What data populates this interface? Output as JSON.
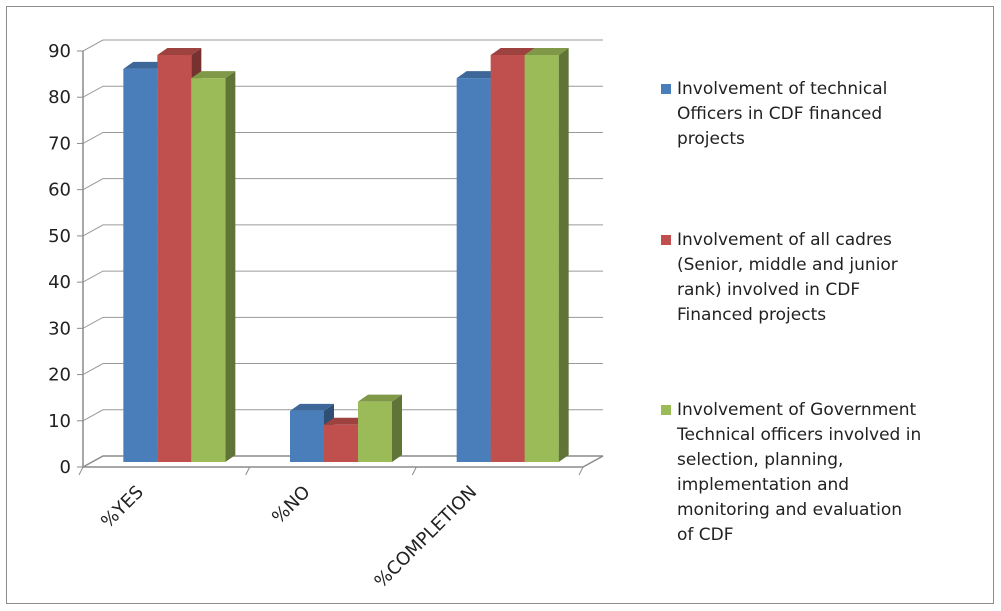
{
  "chart_data": {
    "type": "bar",
    "categories": [
      "%YES",
      "%NO",
      "%COMPLETION"
    ],
    "series": [
      {
        "name": "Involvement of technical Officers in CDF financed projects",
        "name_lines": [
          "Involvement of technical",
          "Officers in CDF financed",
          "projects"
        ],
        "color": "#4a7ebb",
        "values": [
          87,
          13,
          85
        ]
      },
      {
        "name": "Involvement of all cadres (Senior, middle and junior rank) involved in CDF Financed projects",
        "name_lines": [
          "Involvement of all cadres",
          "(Senior, middle and junior",
          "rank) involved in CDF",
          "Financed projects"
        ],
        "color": "#c0504d",
        "values": [
          90,
          10,
          90
        ]
      },
      {
        "name": "Involvement of Government Technical officers involved in selection, planning, implementation and monitoring and evaluation of CDF",
        "name_lines": [
          "Involvement of Government",
          "Technical officers involved in",
          "selection, planning,",
          "implementation and",
          "monitoring and evaluation",
          "of CDF"
        ],
        "color": "#9bbb59",
        "values": [
          85,
          15,
          90
        ]
      }
    ],
    "yticks": [
      "0",
      "10",
      "20",
      "30",
      "40",
      "50",
      "60",
      "70",
      "80",
      "90"
    ],
    "ylim": [
      0,
      90
    ],
    "grid": true,
    "legend_position": "right",
    "style": "3d-clustered-column"
  }
}
